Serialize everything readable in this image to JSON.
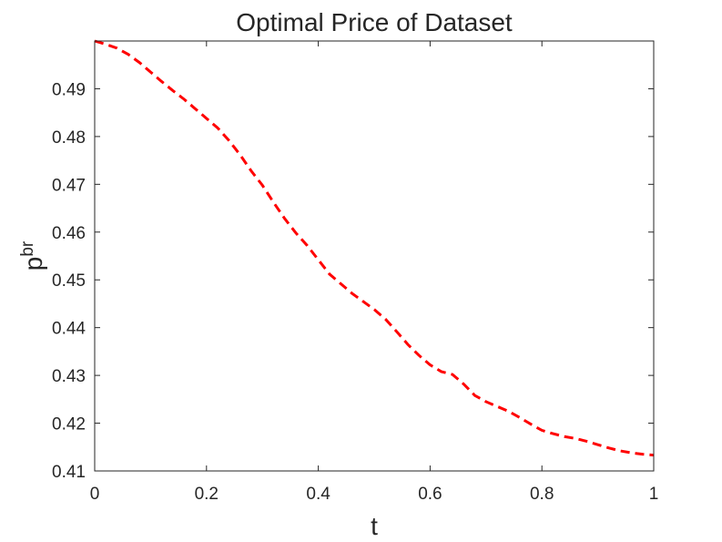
{
  "chart_data": {
    "type": "line",
    "title": "Optimal Price of Dataset",
    "xlabel": "t",
    "ylabel": {
      "base": "p",
      "superscript": "br"
    },
    "xlim": [
      0,
      1
    ],
    "ylim": [
      0.41,
      0.5
    ],
    "xticks": [
      "0",
      "0.2",
      "0.4",
      "0.6",
      "0.8",
      "1"
    ],
    "yticks": [
      "0.41",
      "0.42",
      "0.43",
      "0.44",
      "0.45",
      "0.46",
      "0.47",
      "0.48",
      "0.49"
    ],
    "grid": false,
    "series": [
      {
        "color": "#ff0000",
        "line_style": "dashed",
        "x": [
          0,
          0.02,
          0.04,
          0.06,
          0.08,
          0.1,
          0.12,
          0.14,
          0.16,
          0.18,
          0.2,
          0.22,
          0.24,
          0.26,
          0.28,
          0.3,
          0.32,
          0.34,
          0.36,
          0.38,
          0.4,
          0.42,
          0.44,
          0.46,
          0.48,
          0.5,
          0.52,
          0.54,
          0.56,
          0.58,
          0.6,
          0.62,
          0.64,
          0.66,
          0.68,
          0.7,
          0.72,
          0.74,
          0.76,
          0.78,
          0.8,
          0.82,
          0.84,
          0.86,
          0.88,
          0.9,
          0.92,
          0.94,
          0.96,
          0.98,
          1.0
        ],
        "y": [
          0.5,
          0.4993,
          0.4985,
          0.4972,
          0.4955,
          0.4935,
          0.4915,
          0.4896,
          0.4878,
          0.4858,
          0.4838,
          0.4818,
          0.4792,
          0.4762,
          0.4728,
          0.4698,
          0.4662,
          0.4628,
          0.4598,
          0.4572,
          0.4542,
          0.4512,
          0.4492,
          0.4472,
          0.4455,
          0.4438,
          0.4418,
          0.4392,
          0.4365,
          0.4342,
          0.4322,
          0.4308,
          0.4302,
          0.4282,
          0.4258,
          0.4245,
          0.4235,
          0.4225,
          0.4212,
          0.4198,
          0.4185,
          0.4178,
          0.4172,
          0.4168,
          0.4162,
          0.4155,
          0.4148,
          0.4142,
          0.4138,
          0.4135,
          0.4133
        ]
      }
    ]
  }
}
